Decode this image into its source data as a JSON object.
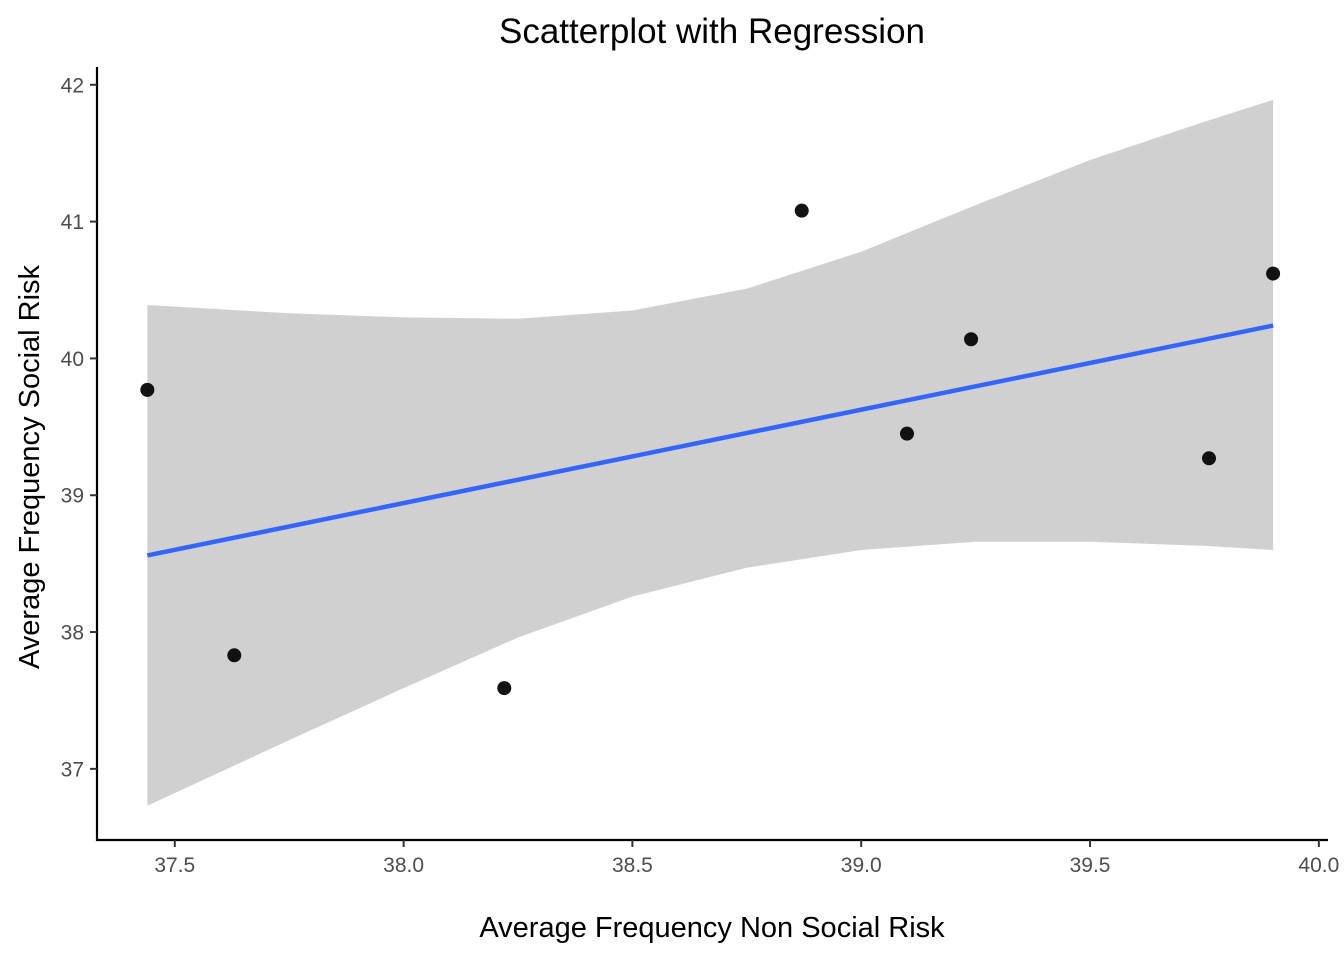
{
  "chart_data": {
    "type": "scatter",
    "title": "Scatterplot with Regression",
    "xlabel": "Average Frequency Non Social Risk",
    "ylabel": "Average Frequency Social Risk",
    "xlim": [
      37.33,
      40.02
    ],
    "ylim": [
      36.48,
      42.13
    ],
    "x_ticks": [
      37.5,
      38.0,
      38.5,
      39.0,
      39.5,
      40.0
    ],
    "x_tick_labels": [
      "37.5",
      "38.0",
      "38.5",
      "39.0",
      "39.5",
      "40.0"
    ],
    "y_ticks": [
      37,
      38,
      39,
      40,
      41,
      42
    ],
    "y_tick_labels": [
      "37",
      "38",
      "39",
      "40",
      "41",
      "42"
    ],
    "grid": false,
    "series": [
      {
        "type": "scatter",
        "x": [
          37.44,
          37.63,
          38.22,
          38.87,
          39.1,
          39.24,
          39.76,
          39.9
        ],
        "y": [
          39.77,
          37.83,
          37.59,
          41.08,
          39.45,
          40.14,
          39.27,
          40.62
        ],
        "color": "#000000"
      }
    ],
    "regression": {
      "x": [
        37.44,
        39.9
      ],
      "y": [
        38.56,
        40.24
      ],
      "color": "#3366FF"
    },
    "confidence_band": {
      "x": [
        37.44,
        37.75,
        38.0,
        38.25,
        38.5,
        38.75,
        39.0,
        39.25,
        39.5,
        39.75,
        39.9
      ],
      "lower": [
        36.73,
        37.21,
        37.59,
        37.96,
        38.26,
        38.47,
        38.6,
        38.66,
        38.66,
        38.63,
        38.6
      ],
      "upper": [
        40.39,
        40.33,
        40.3,
        40.29,
        40.35,
        40.51,
        40.78,
        41.12,
        41.45,
        41.73,
        41.89
      ],
      "color": "#cccccc"
    }
  }
}
